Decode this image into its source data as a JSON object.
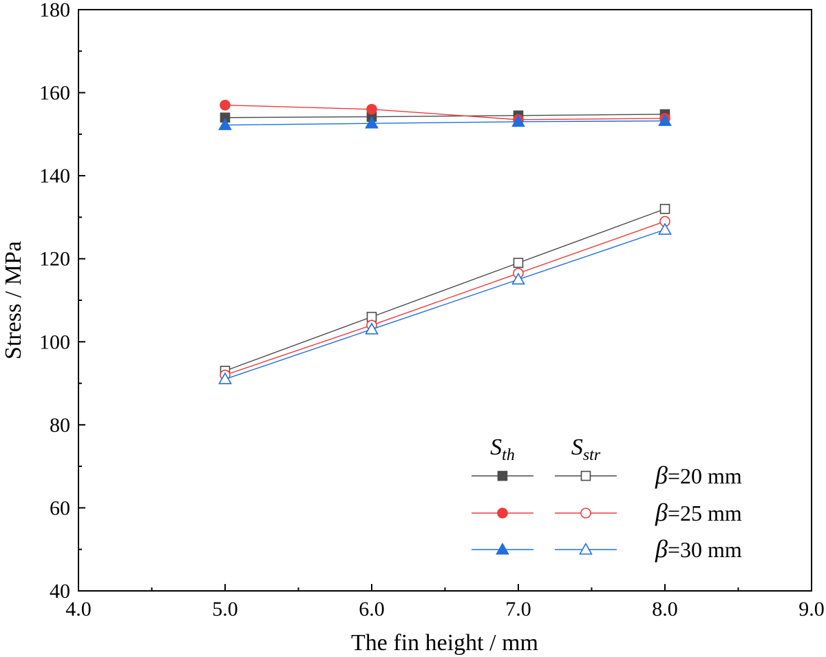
{
  "chart_data": {
    "type": "line",
    "xlabel": "The fin height / mm",
    "ylabel": "Stress / MPa",
    "xlim": [
      4.0,
      9.0
    ],
    "ylim": [
      40,
      180
    ],
    "x_ticks": [
      "4.0",
      "5.0",
      "6.0",
      "7.0",
      "8.0",
      "9.0"
    ],
    "y_ticks": [
      "40",
      "60",
      "80",
      "100",
      "120",
      "140",
      "160",
      "180"
    ],
    "grid": false,
    "legend_position": "bottom-right",
    "legend": {
      "col_th": {
        "main": "S",
        "sub": "th"
      },
      "col_str": {
        "main": "S",
        "sub": "str"
      },
      "rows": [
        {
          "beta": "β",
          "text": "=20 mm",
          "color": "#4a4a4a",
          "marker": "square"
        },
        {
          "beta": "β",
          "text": "=25 mm",
          "color": "#ee3b3b",
          "marker": "circle"
        },
        {
          "beta": "β",
          "text": "=30 mm",
          "color": "#1f6fe0",
          "marker": "triangle"
        }
      ]
    },
    "x": [
      5.0,
      6.0,
      7.0,
      8.0
    ],
    "series": [
      {
        "group": "th",
        "row": 0,
        "filled": true,
        "values": [
          154.0,
          154.2,
          154.5,
          154.8
        ]
      },
      {
        "group": "th",
        "row": 1,
        "filled": true,
        "values": [
          157.0,
          156.0,
          153.5,
          153.8
        ]
      },
      {
        "group": "th",
        "row": 2,
        "filled": true,
        "values": [
          152.2,
          152.6,
          153.0,
          153.2
        ]
      },
      {
        "group": "str",
        "row": 0,
        "filled": false,
        "values": [
          93.0,
          106.0,
          119.0,
          132.0
        ]
      },
      {
        "group": "str",
        "row": 1,
        "filled": false,
        "values": [
          92.0,
          104.0,
          116.5,
          129.0
        ]
      },
      {
        "group": "str",
        "row": 2,
        "filled": false,
        "values": [
          91.0,
          103.0,
          115.0,
          127.0
        ]
      }
    ]
  }
}
